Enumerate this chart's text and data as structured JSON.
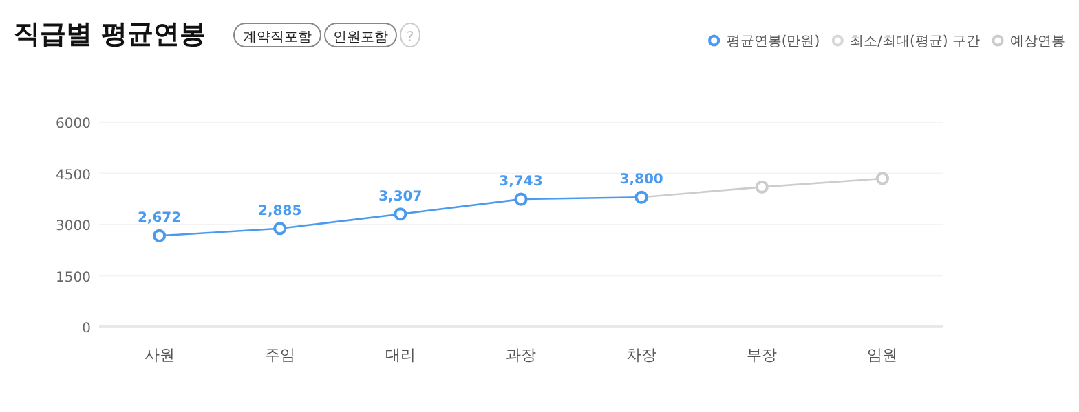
{
  "chart_data": {
    "type": "line",
    "title": "직급별 평균연봉",
    "annotations": [
      "계약직포함",
      "인원포함",
      "?"
    ],
    "categories": [
      "사원",
      "주임",
      "대리",
      "과장",
      "차장",
      "부장",
      "임원"
    ],
    "ylim": [
      0,
      6000
    ],
    "yticks": [
      0,
      1500,
      3000,
      4500,
      6000
    ],
    "grid": "y",
    "legend": "top right",
    "marker": "circle",
    "series": [
      {
        "name": "평균연봉(만원)",
        "color": "#4a9af0",
        "values": [
          2672,
          2885,
          3307,
          3743,
          3800,
          null,
          null
        ],
        "value_labels": [
          "2,672",
          "2,885",
          "3,307",
          "3,743",
          "3,800",
          null,
          null
        ]
      },
      {
        "name": "최소/최대(평균) 구간",
        "color": "#d8d8d8",
        "values": [
          null,
          null,
          null,
          null,
          null,
          null,
          null
        ]
      },
      {
        "name": "예상연봉",
        "color": "#cccccc",
        "values": [
          null,
          null,
          null,
          null,
          3800,
          4100,
          4350
        ]
      }
    ]
  }
}
